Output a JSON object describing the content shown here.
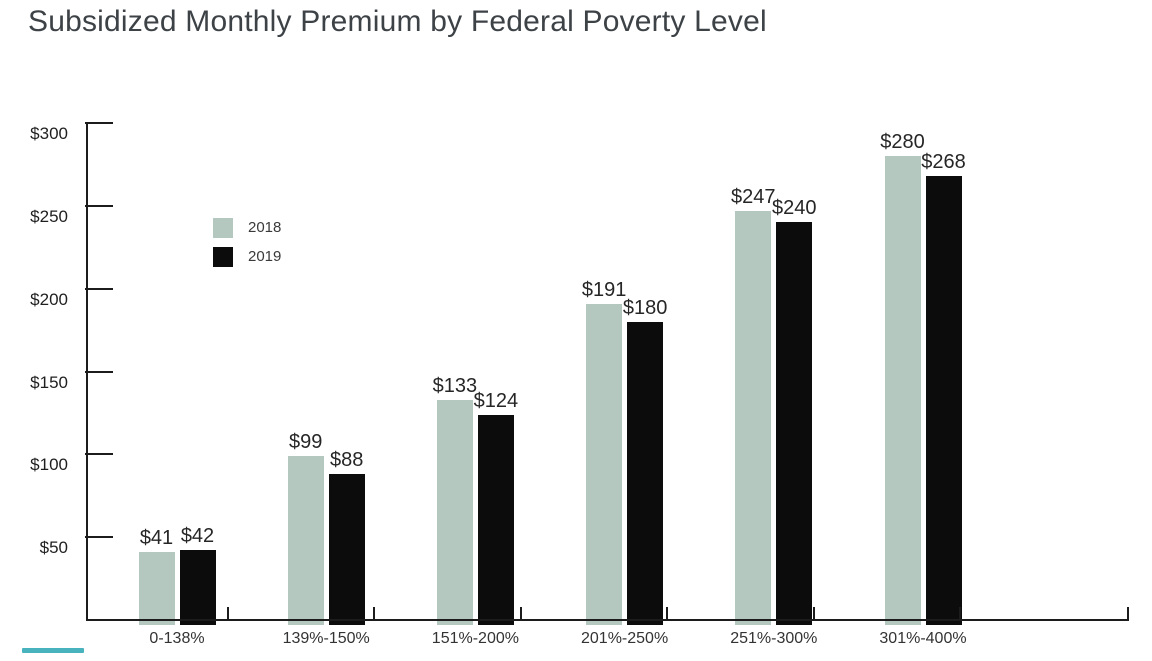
{
  "chart_data": {
    "type": "bar",
    "title": "Subsidized Monthly Premium by Federal Poverty Level",
    "categories": [
      "0-138%",
      "139%-150%",
      "151%-200%",
      "201%-250%",
      "251%-300%",
      "301%-400%"
    ],
    "series": [
      {
        "name": "2018",
        "color": "#b4c8bf",
        "values": [
          41,
          99,
          133,
          191,
          247,
          280
        ],
        "value_labels": [
          "$41",
          "$99",
          "$133",
          "$191",
          "$247",
          "$280"
        ]
      },
      {
        "name": "2019",
        "color": "#0c0c0c",
        "values": [
          42,
          88,
          124,
          180,
          240,
          268
        ],
        "value_labels": [
          "$42",
          "$88",
          "$124",
          "$180",
          "$240",
          "$268"
        ]
      }
    ],
    "y_axis": {
      "min": 0,
      "max": 300,
      "ticks": [
        50,
        100,
        150,
        200,
        250,
        300
      ],
      "tick_labels": [
        "$50",
        "$100",
        "$150",
        "$200",
        "$250",
        "$300"
      ]
    },
    "legend": {
      "entries": [
        "2018",
        "2019"
      ],
      "position": "inside-upper-left"
    },
    "grid": false
  },
  "colors": {
    "accent_underline": "#48b3bc",
    "axis": "#1c1c1c",
    "title_text": "#3d4247"
  }
}
